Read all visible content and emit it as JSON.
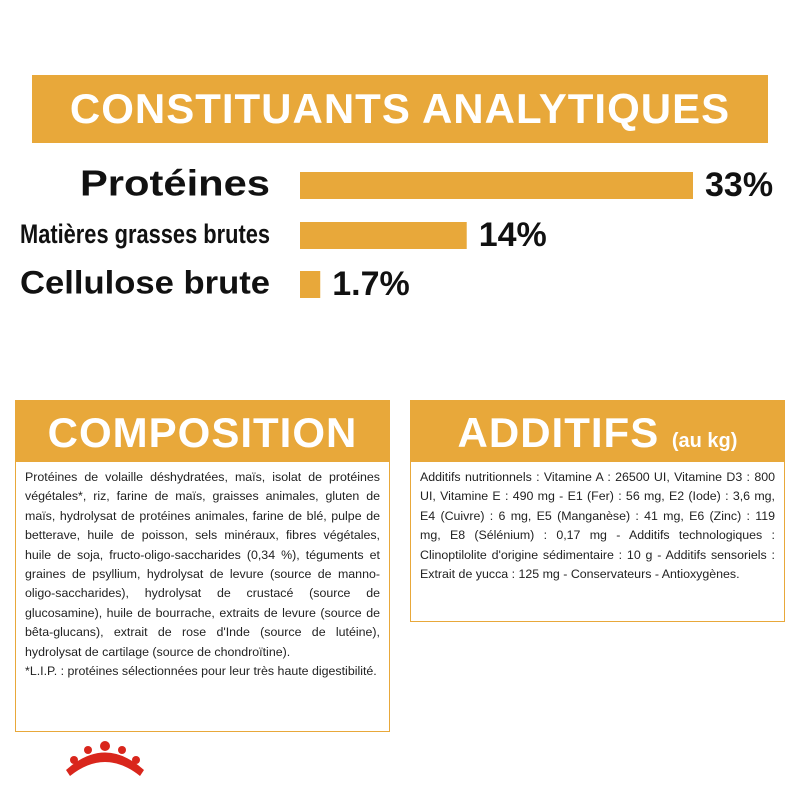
{
  "chart_data": {
    "type": "bar",
    "orientation": "horizontal",
    "title": "CONSTITUANTS ANALYTIQUES",
    "categories": [
      "Protéines",
      "Matières grasses brutes",
      "Cellulose brute"
    ],
    "values": [
      33,
      14,
      1.7
    ],
    "value_labels": [
      "33%",
      "14%",
      "1.7%"
    ],
    "color": "#e8a83a"
  },
  "composition": {
    "title": "COMPOSITION",
    "text": "Protéines de volaille déshydratées, maïs, isolat de protéines végétales*, riz, farine de maïs, graisses animales, gluten de maïs, hydrolysat de protéines animales, farine de blé, pulpe de betterave, huile de poisson, sels minéraux, fibres végétales, huile de soja, fructo-oligo-saccharides (0,34 %), téguments et graines de psyllium, hydrolysat de levure (source de manno-oligo-saccharides), hydrolysat de crustacé (source de glucosamine), huile de bourrache, extraits de levure (source de bêta-glucans), extrait de rose d'Inde (source de lutéine), hydrolysat de cartilage (source de chondroïtine).",
    "note": "*L.I.P. : protéines sélectionnées pour leur très haute digestibilité."
  },
  "additifs": {
    "title": "ADDITIFS",
    "unit": "(au kg)",
    "text": "Additifs nutritionnels : Vitamine A : 26500 UI, Vitamine D3 : 800 UI, Vitamine E : 490 mg - E1 (Fer) : 56 mg, E2 (Iode) : 3,6 mg, E4 (Cuivre) : 6 mg, E5 (Manganèse) : 41 mg, E6 (Zinc) : 119 mg, E8 (Sélénium) : 0,17 mg - Additifs technologiques : Clinoptilolite d'origine sédimentaire : 10 g - Additifs sensoriels : Extrait de yucca : 125 mg - Conservateurs - Antioxygènes."
  }
}
